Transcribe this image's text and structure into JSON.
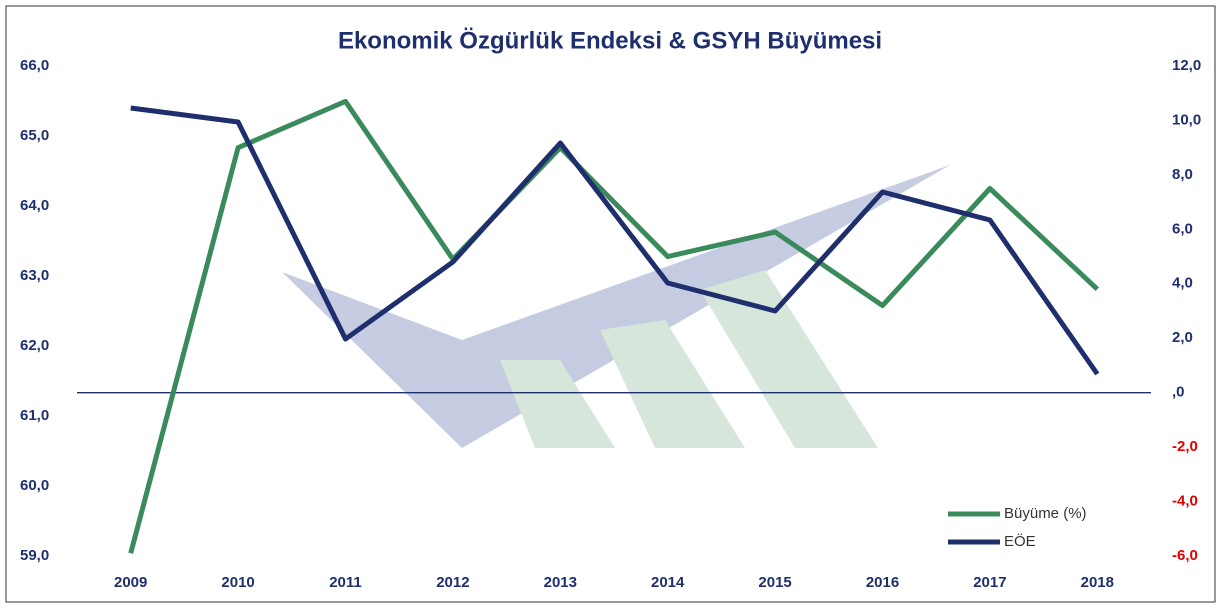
{
  "chart_data": {
    "type": "line",
    "title": "Ekonomik Özgürlük Endeksi & GSYH Büyümesi",
    "categories": [
      "2009",
      "2010",
      "2011",
      "2012",
      "2013",
      "2014",
      "2015",
      "2016",
      "2017",
      "2018"
    ],
    "series": [
      {
        "name": "Büyüme (%)",
        "color": "#3a8a5c",
        "axis": "y2",
        "values": [
          -5.9,
          9.0,
          10.7,
          4.9,
          9.0,
          5.0,
          5.9,
          3.2,
          7.5,
          3.8
        ]
      },
      {
        "name": "EÖE",
        "color": "#1f2f6e",
        "values": [
          65.4,
          65.2,
          62.1,
          63.2,
          64.9,
          62.9,
          62.5,
          64.2,
          63.8,
          61.6
        ]
      }
    ],
    "ylim": [
      59,
      66
    ],
    "yticks": [
      {
        "value": 59,
        "label": "59,0"
      },
      {
        "value": 60,
        "label": "60,0"
      },
      {
        "value": 61,
        "label": "61,0"
      },
      {
        "value": 62,
        "label": "62,0"
      },
      {
        "value": 63,
        "label": "63,0"
      },
      {
        "value": 64,
        "label": "64,0"
      },
      {
        "value": 65,
        "label": "65,0"
      },
      {
        "value": 66,
        "label": "66,0"
      }
    ],
    "y2lim": [
      -6,
      12
    ],
    "y2ticks": [
      {
        "value": -6,
        "label": "-6,0"
      },
      {
        "value": -4,
        "label": "-4,0"
      },
      {
        "value": -2,
        "label": "-2,0"
      },
      {
        "value": 0,
        "label": ",0"
      },
      {
        "value": 2,
        "label": "2,0"
      },
      {
        "value": 4,
        "label": "4,0"
      },
      {
        "value": 6,
        "label": "6,0"
      },
      {
        "value": 8,
        "label": "8,0"
      },
      {
        "value": 10,
        "label": "10,0"
      },
      {
        "value": 12,
        "label": "12,0"
      }
    ],
    "legend": "lower right"
  }
}
